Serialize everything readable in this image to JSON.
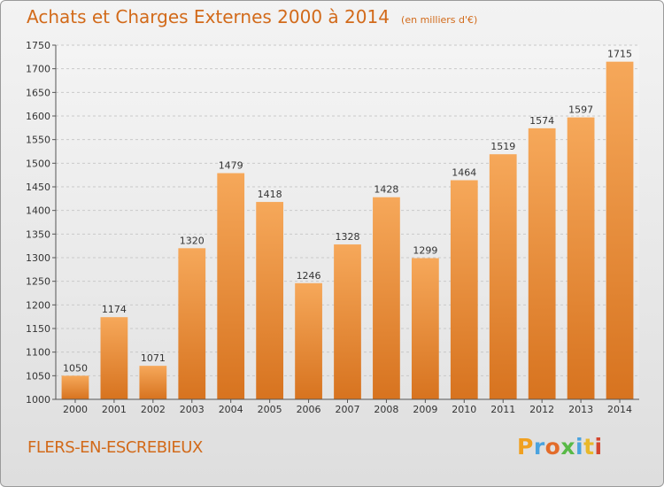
{
  "header": {
    "title": "Achats et Charges Externes 2000 à 2014",
    "unit": "(en milliers d'€)"
  },
  "footer": {
    "place": "FLERS-EN-ESCREBIEUX",
    "logo": "Proxiti"
  },
  "colors": {
    "accent": "#d26a1a",
    "bar_top": "#f6a85a",
    "bar_bottom": "#d7731f",
    "logo": [
      "#f0a020",
      "#4aa3df",
      "#e36c2a",
      "#58b947",
      "#4aa3df",
      "#e9b82a",
      "#d4462e"
    ]
  },
  "chart_data": {
    "type": "bar",
    "categories": [
      "2000",
      "2001",
      "2002",
      "2003",
      "2004",
      "2005",
      "2006",
      "2007",
      "2008",
      "2009",
      "2010",
      "2011",
      "2012",
      "2013",
      "2014"
    ],
    "values": [
      1050,
      1174,
      1071,
      1320,
      1479,
      1418,
      1246,
      1328,
      1428,
      1299,
      1464,
      1519,
      1574,
      1597,
      1715
    ],
    "yticks": [
      1000,
      1050,
      1100,
      1150,
      1200,
      1250,
      1300,
      1350,
      1400,
      1450,
      1500,
      1550,
      1600,
      1650,
      1700,
      1750
    ],
    "ylim": [
      1000,
      1750
    ],
    "grid": true,
    "data_labels": true
  }
}
